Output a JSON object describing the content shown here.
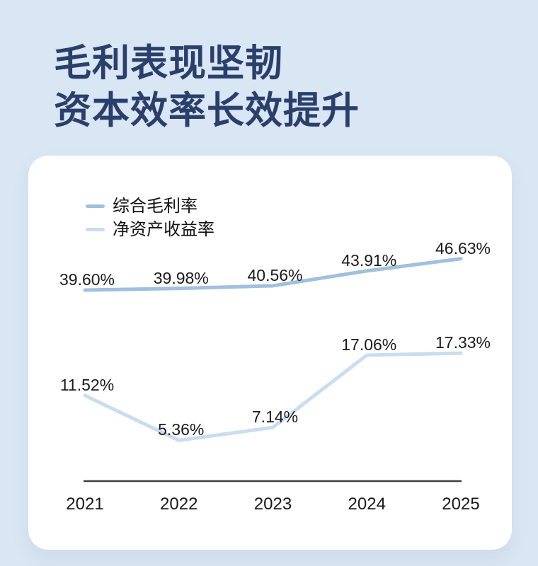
{
  "page": {
    "title_line1": "毛利表现坚韧",
    "title_line2": "资本效率长效提升"
  },
  "colors": {
    "background": "#d9e6f3",
    "card": "#ffffff",
    "title": "#2b3f6c",
    "series1": "#9fc0de",
    "series2": "#c9ddee",
    "axis": "#3d3d3d",
    "label_text": "#1a1a1a"
  },
  "chart_data": {
    "type": "line",
    "title": "",
    "xlabel": "",
    "ylabel": "",
    "grid": false,
    "legend_position": "top-left",
    "value_format": "percent",
    "categories": [
      "2021",
      "2022",
      "2023",
      "2024",
      "2025"
    ],
    "series": [
      {
        "name": "综合毛利率",
        "color": "#9fc0de",
        "values": [
          39.6,
          39.98,
          40.56,
          43.91,
          46.63
        ],
        "labels": [
          "39.60%",
          "39.98%",
          "40.56%",
          "43.91%",
          "46.63%"
        ]
      },
      {
        "name": "净资产收益率",
        "color": "#c9ddee",
        "values": [
          11.52,
          5.36,
          7.14,
          17.06,
          17.33
        ],
        "labels": [
          "11.52%",
          "5.36%",
          "7.14%",
          "17.06%",
          "17.33%"
        ]
      }
    ]
  }
}
